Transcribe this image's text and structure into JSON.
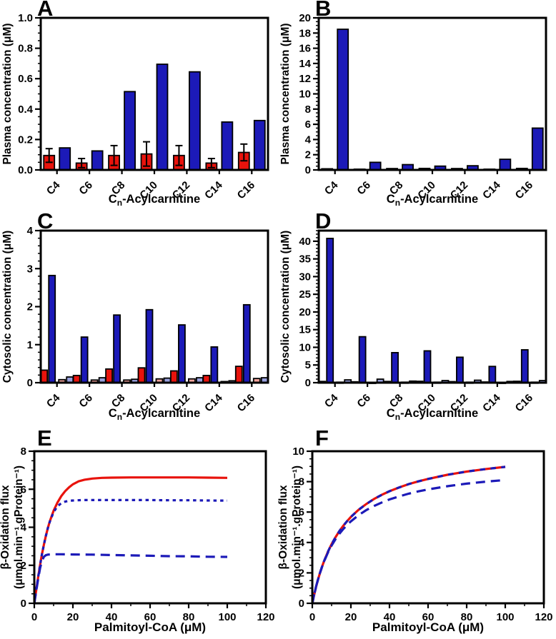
{
  "figure": {
    "background": "#ffffff"
  },
  "colors": {
    "red": "#e8130c",
    "blue": "#1c1ab8",
    "pink": "#f2a39b",
    "light_blue": "#98a0dd",
    "outline": "#000000"
  },
  "chart_data": [
    {
      "letter": "A",
      "type": "bar",
      "ylabel": "Plasma concentration (μM)",
      "xlabel": {
        "pre": "C",
        "sub": "n",
        "post": "-Acylcarnitine"
      },
      "categories": [
        "C4",
        "C6",
        "C8",
        "C10",
        "C12",
        "C14",
        "C16"
      ],
      "ylim": [
        0,
        1.0
      ],
      "ytick_values": [
        0,
        0.2,
        0.4,
        0.6,
        0.8,
        1.0
      ],
      "ytick_labels": [
        "0.0",
        "0.2",
        "0.4",
        "0.6",
        "0.8",
        "1.0"
      ],
      "yminor_step": 0.05,
      "series": [
        {
          "name": "red-bars",
          "color": "red",
          "values": [
            0.095,
            0.045,
            0.095,
            0.105,
            0.095,
            0.045,
            0.115
          ],
          "errors": [
            0.045,
            0.03,
            0.065,
            0.08,
            0.065,
            0.03,
            0.055
          ]
        },
        {
          "name": "blue-bars",
          "color": "blue",
          "values": [
            0.145,
            0.125,
            0.515,
            0.695,
            0.645,
            0.315,
            0.325
          ]
        }
      ]
    },
    {
      "letter": "B",
      "type": "bar",
      "ylabel": "Plasma concentration (μM)",
      "xlabel": {
        "pre": "C",
        "sub": "n",
        "post": "-Acylcarnitine"
      },
      "categories": [
        "C4",
        "C6",
        "C8",
        "C10",
        "C12",
        "C14",
        "C16"
      ],
      "ylim": [
        0,
        20
      ],
      "ytick_values": [
        0,
        2,
        4,
        6,
        8,
        10,
        12,
        14,
        16,
        18,
        20
      ],
      "ytick_labels": [
        "0",
        "2",
        "4",
        "6",
        "8",
        "10",
        "12",
        "14",
        "16",
        "18",
        "20"
      ],
      "yminor_step": 0.5,
      "series": [
        {
          "name": "red-bars",
          "color": "red",
          "values": [
            0.15,
            0.1,
            0.18,
            0.2,
            0.18,
            0.1,
            0.2
          ]
        },
        {
          "name": "blue-bars",
          "color": "blue",
          "values": [
            18.5,
            1.0,
            0.7,
            0.5,
            0.55,
            1.4,
            5.5
          ]
        }
      ]
    },
    {
      "letter": "C",
      "type": "bar",
      "ylabel": "Cytosolic concentration (μM)",
      "xlabel": {
        "pre": "C",
        "sub": "n",
        "post": "-Acylcarnitine"
      },
      "categories": [
        "C4",
        "C6",
        "C8",
        "C10",
        "C12",
        "C14",
        "C16"
      ],
      "ylim": [
        0,
        4
      ],
      "ytick_values": [
        0,
        1,
        2,
        3,
        4
      ],
      "ytick_labels": [
        "0",
        "1",
        "2",
        "3",
        "4"
      ],
      "yminor_step": 0.2,
      "series": [
        {
          "name": "red-bars",
          "color": "red",
          "values": [
            0.33,
            0.19,
            0.36,
            0.39,
            0.31,
            0.19,
            0.43
          ]
        },
        {
          "name": "blue-bars",
          "color": "blue",
          "values": [
            2.82,
            1.2,
            1.78,
            1.92,
            1.52,
            0.94,
            2.05
          ]
        },
        {
          "name": "pink-bars",
          "color": "pink",
          "values": [
            0.08,
            0.07,
            0.07,
            0.1,
            0.1,
            0.03,
            0.11
          ]
        },
        {
          "name": "lightblue-bars",
          "color": "light_blue",
          "values": [
            0.15,
            0.13,
            0.09,
            0.12,
            0.13,
            0.05,
            0.13
          ]
        }
      ]
    },
    {
      "letter": "D",
      "type": "bar",
      "ylabel": "Cytosolic concentration (μM)",
      "xlabel": {
        "pre": "C",
        "sub": "n",
        "post": "-Acylcarnitine"
      },
      "categories": [
        "C4",
        "C6",
        "C8",
        "C10",
        "C12",
        "C14",
        "C16"
      ],
      "ylim": [
        0,
        43
      ],
      "ytick_values": [
        0,
        5,
        10,
        15,
        20,
        25,
        30,
        35,
        40
      ],
      "ytick_labels": [
        "0",
        "5",
        "10",
        "15",
        "20",
        "25",
        "30",
        "35",
        "40"
      ],
      "yminor_step": 1,
      "series": [
        {
          "name": "red-bars",
          "color": "red",
          "values": [
            0.35,
            0.25,
            0.35,
            0.4,
            0.3,
            0.2,
            0.4
          ]
        },
        {
          "name": "blue-bars",
          "color": "blue",
          "values": [
            40.8,
            13.0,
            8.5,
            9.0,
            7.2,
            4.6,
            9.3
          ]
        },
        {
          "name": "pink-bars",
          "color": "pink",
          "values": [
            0.15,
            0.1,
            0.15,
            0.15,
            0.15,
            0.1,
            0.15
          ]
        },
        {
          "name": "lightblue-bars",
          "color": "light_blue",
          "values": [
            0.8,
            1.0,
            0.45,
            0.6,
            0.7,
            0.35,
            0.6
          ]
        }
      ]
    },
    {
      "letter": "E",
      "type": "line",
      "ylabel_lines": [
        "β-Oxidation flux",
        "(μmol.min⁻¹.gProtein⁻¹)"
      ],
      "xlabel_text": "Palmitoyl-CoA (μM)",
      "xlim": [
        0,
        120
      ],
      "ylim": [
        0,
        8
      ],
      "xtick_values": [
        0,
        20,
        40,
        60,
        80,
        100,
        120
      ],
      "xtick_labels": [
        "0",
        "20",
        "40",
        "60",
        "80",
        "100",
        "120"
      ],
      "ytick_values": [
        0,
        2,
        4,
        6,
        8
      ],
      "ytick_labels": [
        "0",
        "2",
        "4",
        "6",
        "8"
      ],
      "xminor_step": 10,
      "yminor_step": 0.5,
      "series": [
        {
          "name": "red-solid",
          "color": "red",
          "style": "solid",
          "points": [
            [
              0,
              0
            ],
            [
              1,
              0.7
            ],
            [
              2,
              1.38
            ],
            [
              3,
              2.02
            ],
            [
              4,
              2.6
            ],
            [
              5,
              3.1
            ],
            [
              6,
              3.55
            ],
            [
              7,
              3.95
            ],
            [
              8,
              4.3
            ],
            [
              10,
              4.87
            ],
            [
              12,
              5.3
            ],
            [
              14,
              5.64
            ],
            [
              16,
              5.9
            ],
            [
              18,
              6.1
            ],
            [
              20,
              6.26
            ],
            [
              23,
              6.42
            ],
            [
              26,
              6.5
            ],
            [
              30,
              6.56
            ],
            [
              35,
              6.6
            ],
            [
              40,
              6.61
            ],
            [
              50,
              6.62
            ],
            [
              60,
              6.62
            ],
            [
              70,
              6.62
            ],
            [
              80,
              6.62
            ],
            [
              90,
              6.61
            ],
            [
              100,
              6.6
            ]
          ]
        },
        {
          "name": "blue-short-dash",
          "color": "blue",
          "style": "short-dash",
          "points": [
            [
              0,
              0
            ],
            [
              1,
              0.7
            ],
            [
              2,
              1.38
            ],
            [
              3,
              2.02
            ],
            [
              4,
              2.6
            ],
            [
              5,
              3.1
            ],
            [
              6,
              3.55
            ],
            [
              7,
              3.95
            ],
            [
              8,
              4.28
            ],
            [
              10,
              4.8
            ],
            [
              12,
              5.1
            ],
            [
              14,
              5.27
            ],
            [
              16,
              5.35
            ],
            [
              18,
              5.39
            ],
            [
              20,
              5.41
            ],
            [
              25,
              5.43
            ],
            [
              30,
              5.43
            ],
            [
              40,
              5.43
            ],
            [
              50,
              5.43
            ],
            [
              60,
              5.43
            ],
            [
              70,
              5.42
            ],
            [
              80,
              5.42
            ],
            [
              90,
              5.41
            ],
            [
              100,
              5.4
            ]
          ]
        },
        {
          "name": "blue-long-dash",
          "color": "blue",
          "style": "long-dash",
          "points": [
            [
              0,
              0
            ],
            [
              1,
              0.65
            ],
            [
              2,
              1.28
            ],
            [
              3,
              1.85
            ],
            [
              4,
              2.25
            ],
            [
              5,
              2.45
            ],
            [
              6,
              2.53
            ],
            [
              7,
              2.56
            ],
            [
              8,
              2.57
            ],
            [
              10,
              2.58
            ],
            [
              14,
              2.58
            ],
            [
              20,
              2.57
            ],
            [
              30,
              2.56
            ],
            [
              40,
              2.54
            ],
            [
              50,
              2.52
            ],
            [
              60,
              2.5
            ],
            [
              70,
              2.48
            ],
            [
              80,
              2.47
            ],
            [
              90,
              2.45
            ],
            [
              100,
              2.44
            ]
          ]
        }
      ]
    },
    {
      "letter": "F",
      "type": "line",
      "ylabel_lines": [
        "β-Oxidation flux",
        "(μmol.min⁻¹.gProtein⁻¹)"
      ],
      "xlabel_text": "Palmitoyl-CoA (μM)",
      "xlim": [
        0,
        120
      ],
      "ylim": [
        0,
        10
      ],
      "xtick_values": [
        0,
        20,
        40,
        60,
        80,
        100,
        120
      ],
      "xtick_labels": [
        "0",
        "20",
        "40",
        "60",
        "80",
        "100",
        "120"
      ],
      "ytick_values": [
        0,
        2,
        4,
        6,
        8,
        10
      ],
      "ytick_labels": [
        "0",
        "2",
        "4",
        "6",
        "8",
        "10"
      ],
      "xminor_step": 10,
      "yminor_step": 0.5,
      "series": [
        {
          "name": "red-solid",
          "color": "red",
          "style": "solid",
          "points": [
            [
              0,
              0
            ],
            [
              1,
              0.58
            ],
            [
              2,
              1.11
            ],
            [
              3,
              1.58
            ],
            [
              4,
              2.0
            ],
            [
              5,
              2.39
            ],
            [
              6,
              2.74
            ],
            [
              8,
              3.36
            ],
            [
              10,
              3.89
            ],
            [
              12,
              4.34
            ],
            [
              14,
              4.74
            ],
            [
              16,
              5.09
            ],
            [
              18,
              5.4
            ],
            [
              20,
              5.68
            ],
            [
              24,
              6.15
            ],
            [
              28,
              6.53
            ],
            [
              32,
              6.86
            ],
            [
              36,
              7.13
            ],
            [
              40,
              7.37
            ],
            [
              45,
              7.62
            ],
            [
              50,
              7.84
            ],
            [
              55,
              8.02
            ],
            [
              60,
              8.18
            ],
            [
              70,
              8.45
            ],
            [
              80,
              8.66
            ],
            [
              90,
              8.83
            ],
            [
              100,
              8.97
            ]
          ]
        },
        {
          "name": "blue-short-dash-overlay",
          "color": "blue",
          "style": "overlay-dash",
          "points": [
            [
              0,
              0
            ],
            [
              1,
              0.58
            ],
            [
              2,
              1.11
            ],
            [
              3,
              1.58
            ],
            [
              4,
              2.0
            ],
            [
              5,
              2.39
            ],
            [
              6,
              2.74
            ],
            [
              8,
              3.36
            ],
            [
              10,
              3.89
            ],
            [
              12,
              4.34
            ],
            [
              14,
              4.74
            ],
            [
              16,
              5.09
            ],
            [
              18,
              5.4
            ],
            [
              20,
              5.68
            ],
            [
              24,
              6.15
            ],
            [
              28,
              6.53
            ],
            [
              32,
              6.86
            ],
            [
              36,
              7.13
            ],
            [
              40,
              7.37
            ],
            [
              45,
              7.62
            ],
            [
              50,
              7.84
            ],
            [
              55,
              8.02
            ],
            [
              60,
              8.18
            ],
            [
              70,
              8.45
            ],
            [
              80,
              8.66
            ],
            [
              90,
              8.83
            ],
            [
              100,
              8.97
            ]
          ]
        },
        {
          "name": "blue-long-dash",
          "color": "blue",
          "style": "long-dash",
          "points": [
            [
              0,
              0
            ],
            [
              1,
              0.6
            ],
            [
              2,
              1.13
            ],
            [
              3,
              1.59
            ],
            [
              4,
              2.01
            ],
            [
              5,
              2.38
            ],
            [
              6,
              2.72
            ],
            [
              8,
              3.31
            ],
            [
              10,
              3.8
            ],
            [
              12,
              4.21
            ],
            [
              14,
              4.57
            ],
            [
              16,
              4.88
            ],
            [
              18,
              5.15
            ],
            [
              20,
              5.39
            ],
            [
              24,
              5.8
            ],
            [
              28,
              6.13
            ],
            [
              32,
              6.4
            ],
            [
              36,
              6.63
            ],
            [
              40,
              6.83
            ],
            [
              45,
              7.03
            ],
            [
              50,
              7.21
            ],
            [
              55,
              7.36
            ],
            [
              60,
              7.49
            ],
            [
              70,
              7.7
            ],
            [
              80,
              7.87
            ],
            [
              90,
              8.0
            ],
            [
              100,
              8.11
            ]
          ]
        }
      ]
    }
  ]
}
